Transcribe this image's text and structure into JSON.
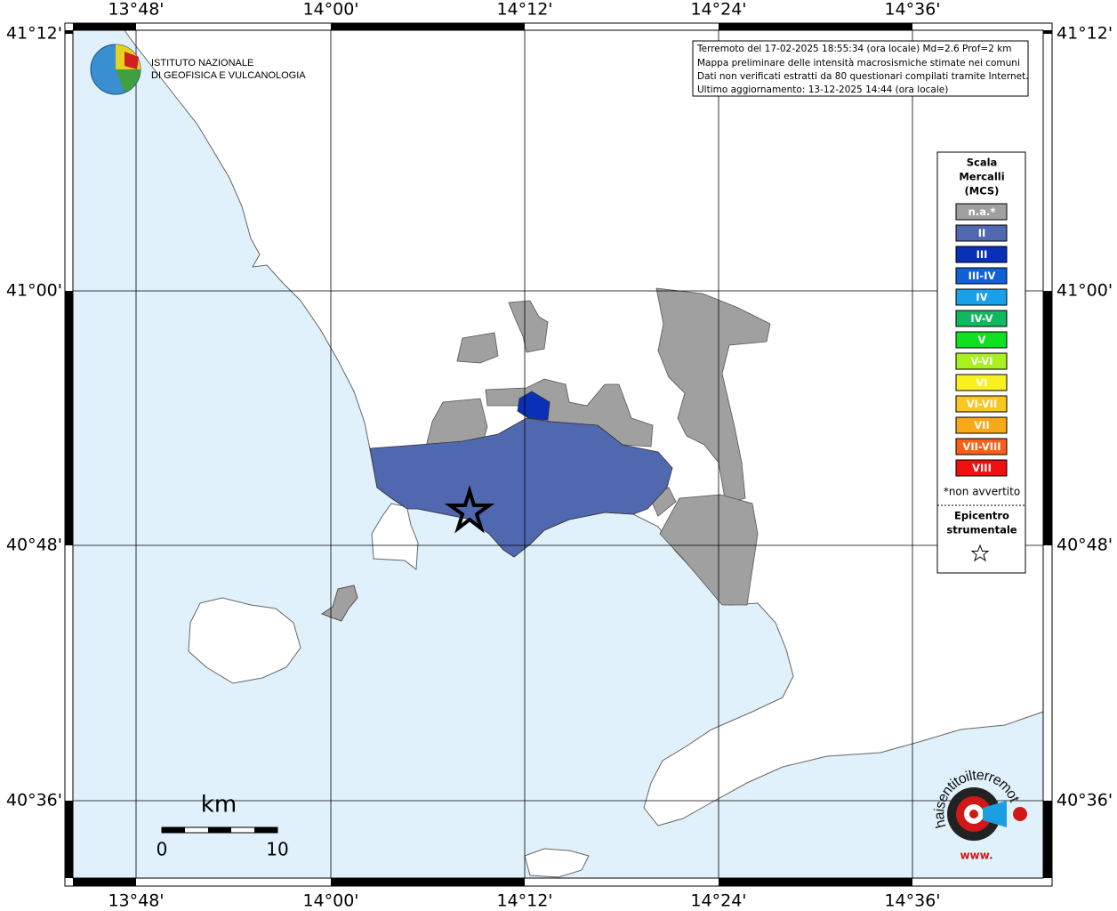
{
  "header": {
    "institute_line1": "ISTITUTO NAZIONALE",
    "institute_line2": "DI GEOFISICA E VULCANOLOGIA"
  },
  "info": [
    "Terremoto del 17-02-2025 18:55:34 (ora locale) Md=2.6 Prof=2 km",
    "Mappa preliminare delle intensità macrosismiche stimate nei comuni",
    "Dati non verificati estratti da 80 questionari compilati tramite Internet.",
    "Ultimo aggiornamento: 13-12-2025 14:44 (ora locale)"
  ],
  "longitude_labels": [
    "13°48'",
    "14°00'",
    "14°12'",
    "14°24'",
    "14°36'"
  ],
  "latitude_labels": [
    "41°12'",
    "41°00'",
    "40°48'",
    "40°36'"
  ],
  "legend": {
    "title": [
      "Scala",
      "Mercalli",
      "(MCS)"
    ],
    "items": [
      {
        "label": "n.a.*",
        "color": "#a0a0a0"
      },
      {
        "label": "II",
        "color": "#5068b0"
      },
      {
        "label": "III",
        "color": "#0a30b8"
      },
      {
        "label": "III-IV",
        "color": "#1060d8"
      },
      {
        "label": "IV",
        "color": "#18a0e8"
      },
      {
        "label": "IV-V",
        "color": "#10b860"
      },
      {
        "label": "V",
        "color": "#10e020"
      },
      {
        "label": "V-VI",
        "color": "#a8f020"
      },
      {
        "label": "VI",
        "color": "#f8f020"
      },
      {
        "label": "VI-VII",
        "color": "#f8c820"
      },
      {
        "label": "VII",
        "color": "#f8a818"
      },
      {
        "label": "VII-VIII",
        "color": "#f86018"
      },
      {
        "label": "VIII",
        "color": "#f01010"
      }
    ],
    "note": "*non avvertito",
    "epicenter": [
      "Epicentro",
      "strumentale"
    ]
  },
  "scale_bar": {
    "unit": "km",
    "start": 0,
    "end": 10
  },
  "logo": {
    "text": "haisentitoilterremoto.it",
    "www": "www."
  }
}
